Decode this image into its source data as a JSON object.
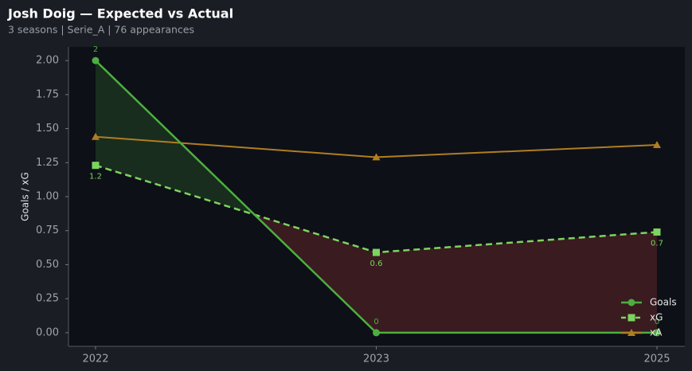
{
  "chart_data": {
    "type": "line",
    "title": "Josh Doig — Expected vs Actual",
    "subtitle": "3 seasons | Serie_A | 76 appearances",
    "y_label": "Goals / xG",
    "categories": [
      "2022",
      "2023",
      "2025"
    ],
    "series": [
      {
        "name": "Goals",
        "color": "#4caf3f",
        "marker": "circle",
        "dash": false,
        "values": [
          2,
          0,
          0
        ]
      },
      {
        "name": "xG",
        "color": "#7dd35f",
        "marker": "square",
        "dash": true,
        "values": [
          1.23,
          0.59,
          0.74
        ],
        "value_labels": [
          "1.2",
          "0.6",
          "0.7"
        ]
      },
      {
        "name": "xA",
        "color": "#b07d22",
        "marker": "triangle",
        "dash": false,
        "values": [
          1.44,
          1.29,
          1.38
        ]
      }
    ],
    "ylim": [
      -0.1,
      2.1
    ],
    "yticks": [
      {
        "value": 0,
        "label": "0.00"
      },
      {
        "value": 0.25,
        "label": "0.25"
      },
      {
        "value": 0.5,
        "label": "0.50"
      },
      {
        "value": 0.75,
        "label": "0.75"
      },
      {
        "value": 1,
        "label": "1.00"
      },
      {
        "value": 1.25,
        "label": "1.25"
      },
      {
        "value": 1.5,
        "label": "1.50"
      },
      {
        "value": 1.75,
        "label": "1.75"
      },
      {
        "value": 2,
        "label": "2.00"
      }
    ],
    "legend": "lower right",
    "grid": false
  }
}
